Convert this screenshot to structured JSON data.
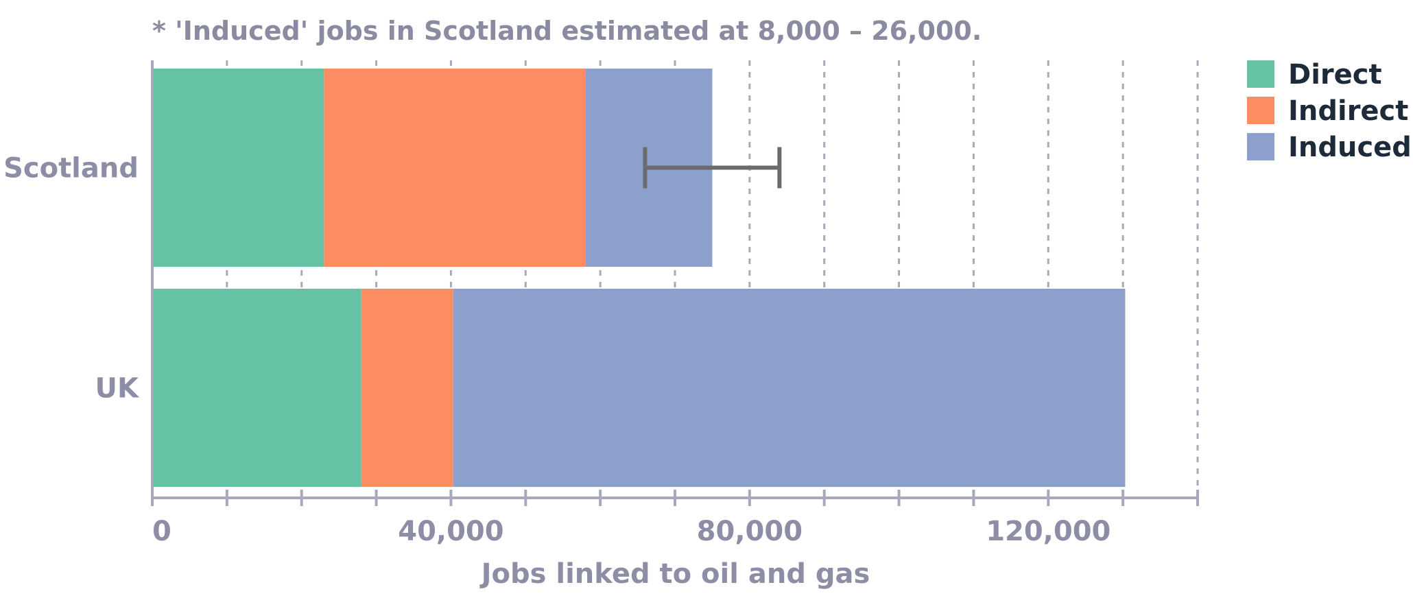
{
  "chart_data": {
    "type": "bar",
    "orientation": "horizontal",
    "stacked": true,
    "note": "* 'Induced' jobs in Scotland estimated at 8,000 – 26,000.",
    "categories": [
      "Scotland",
      "UK"
    ],
    "series": [
      {
        "name": "Direct",
        "color": "#66c2a5",
        "values": [
          23000,
          28000
        ]
      },
      {
        "name": "Indirect",
        "color": "#fc8d62",
        "values": [
          35000,
          12300
        ]
      },
      {
        "name": "Induced",
        "color": "#8da0cb",
        "values": [
          17000,
          90000
        ]
      }
    ],
    "error_bar": {
      "category": "Scotland",
      "low": 66000,
      "high": 84000
    },
    "xlabel": "Jobs linked to oil and gas",
    "ylabel": "",
    "xlim": [
      0,
      140000
    ],
    "xticks": [
      0,
      40000,
      80000,
      120000
    ],
    "xtick_labels": [
      "0",
      "40,000",
      "80,000",
      "120,000"
    ],
    "grid": true,
    "legend_position": "top-right"
  }
}
